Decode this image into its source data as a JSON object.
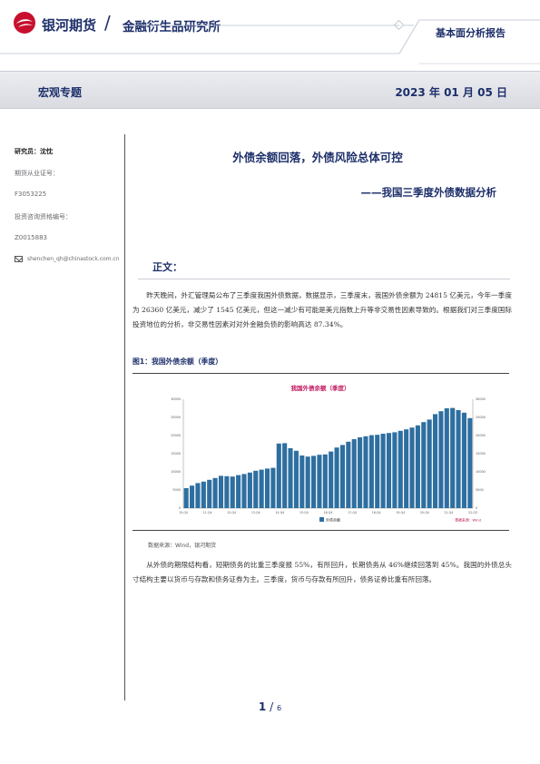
{
  "header": {
    "brand": "银河期货",
    "institute": "金融衍生品研究所",
    "report_type": "基本面分析报告"
  },
  "band": {
    "category": "宏观专题",
    "date": "2023 年 01 月 05 日"
  },
  "sidebar": {
    "researcher": "研究员：沈忱",
    "cert_label": "期货从业证号：",
    "cert_no": "F3053225",
    "invest_label": "投资咨询资格编号：",
    "invest_no": "Z0015883",
    "email": "shenchen_qh@chinastock.com.cn"
  },
  "article": {
    "title": "外债余额回落，外债风险总体可控",
    "subtitle": "——我国三季度外债数据分析",
    "section": "正文：",
    "para1": "昨天晚间，外汇管理局公布了三季度我国外债数据，数据显示，三季度末，我国外债余额为 24815 亿美元，今年一季度为 26360 亿美元，减少了 1545 亿美元，但这一减少有可能是美元指数上升等非交易性因素导致的。根据我们对三季度国际投资地位的分析，非交易性因素对对外金融负债的影响高达 87.34%。",
    "para2": "从外债的期限结构看，短期债务的比重三季度报 55%，有所回升，长期债务从 46%继续回落到 45%。我国的外债总头寸结构主要以货币与存款和债务证券为主。三季度，货币与存款有所回升，债务证券比重有所回落。",
    "figure_title": "图1：我国外债余额（季度）",
    "source": "数据来源：Wind，银河期货"
  },
  "chart_data": {
    "type": "bar",
    "title": "我国外债余额（季度）",
    "legend": "外债余额",
    "watermark": "数据来源：Wind",
    "x_ticks": [
      "15-Q4",
      "11-Q4",
      "12-Q4",
      "13-Q4",
      "14-Q4",
      "15-Q4",
      "16-Q4",
      "17-Q4",
      "18-Q4",
      "19-Q4",
      "20-Q4",
      "21-Q4",
      "22-Q3"
    ],
    "y_ticks": [
      "0",
      "5000",
      "10000",
      "15000",
      "20000",
      "25000",
      "30000"
    ],
    "values": [
      5500,
      6200,
      6900,
      7300,
      7800,
      8300,
      8900,
      8800,
      8700,
      9100,
      9400,
      9800,
      10300,
      10600,
      10900,
      11100,
      17800,
      17900,
      16500,
      15800,
      14500,
      14200,
      14400,
      14700,
      14800,
      15600,
      16700,
      17400,
      18300,
      19000,
      19500,
      19800,
      20100,
      20200,
      20500,
      20700,
      20900,
      21300,
      21700,
      22200,
      22800,
      23700,
      24400,
      25900,
      26700,
      27500,
      27600,
      27000,
      26300,
      24800
    ],
    "ylim": [
      0,
      30000
    ],
    "bar_color": "#2e6fa0",
    "title_color": "#c0185f"
  },
  "footer": {
    "page": "1",
    "sep": "/",
    "total": "6"
  }
}
